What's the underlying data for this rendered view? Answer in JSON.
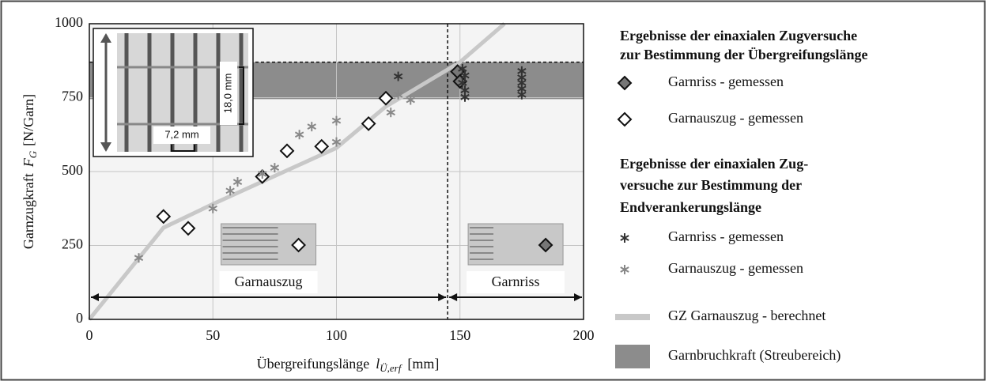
{
  "chart_data": {
    "type": "scatter",
    "xlabel": {
      "text": "Übergreifungslänge",
      "symbol": "l",
      "subscript": "Ü,erf",
      "unit": "[mm]"
    },
    "ylabel": {
      "text": "Garnzugkraft",
      "symbol": "F",
      "subscript": "G",
      "unit": "[N/Garn]"
    },
    "xlim": [
      0,
      200
    ],
    "ylim": [
      0,
      1000
    ],
    "xticks": [
      0,
      50,
      100,
      150,
      200
    ],
    "yticks": [
      0,
      250,
      500,
      750,
      1000
    ],
    "grid": true,
    "legend_titles": [
      [
        "Ergebnisse der einaxialen Zugversuche",
        "zur Bestimmung der Übergreifungslänge"
      ],
      [
        "Ergebnisse der einaxialen Zug-",
        "versuche zur Bestimmung der",
        "Endverankerungslänge"
      ]
    ],
    "series": [
      {
        "name": "Garnriss - gemessen",
        "marker": "diamond",
        "color": "#777777",
        "x": [
          149,
          150
        ],
        "values": [
          838,
          805
        ]
      },
      {
        "name": "Garnauszug - gemessen",
        "marker": "diamond",
        "color": "#ffffff",
        "x": [
          30,
          40,
          70,
          80,
          94,
          113,
          120
        ],
        "values": [
          348,
          308,
          483,
          570,
          585,
          662,
          748
        ]
      },
      {
        "name": "Garnriss - gemessen",
        "marker": "star",
        "color": "#333333",
        "x": [
          125,
          151,
          152,
          151,
          152,
          152,
          175,
          175,
          175,
          175,
          175
        ],
        "values": [
          822,
          848,
          825,
          800,
          775,
          752,
          840,
          818,
          800,
          780,
          760
        ]
      },
      {
        "name": "Garnauszug - gemessen",
        "marker": "star",
        "color": "#888888",
        "x": [
          20,
          50,
          57,
          60,
          70,
          75,
          85,
          90,
          100,
          100,
          122,
          125,
          130
        ],
        "values": [
          208,
          375,
          435,
          465,
          492,
          513,
          625,
          652,
          672,
          600,
          700,
          760,
          742
        ]
      },
      {
        "name": "GZ Garnauszug - berechnet",
        "marker": "line",
        "color": "#c8c8c8",
        "x": [
          0,
          30,
          50,
          100,
          120,
          150,
          168
        ],
        "values": [
          0,
          310,
          390,
          580,
          720,
          870,
          1000
        ]
      }
    ],
    "band": {
      "name": "Garnbruchkraft (Streubereich)",
      "color": "#8c8c8c",
      "range": [
        745,
        870
      ]
    },
    "reference_lines": {
      "y": 870,
      "x": 145
    },
    "regions": [
      {
        "label": "Garnauszug",
        "x": [
          0,
          145
        ]
      },
      {
        "label": "Garnriss",
        "x": [
          145,
          200
        ]
      }
    ],
    "inset_labels": [
      "7,2 mm",
      "18,0 mm"
    ]
  }
}
